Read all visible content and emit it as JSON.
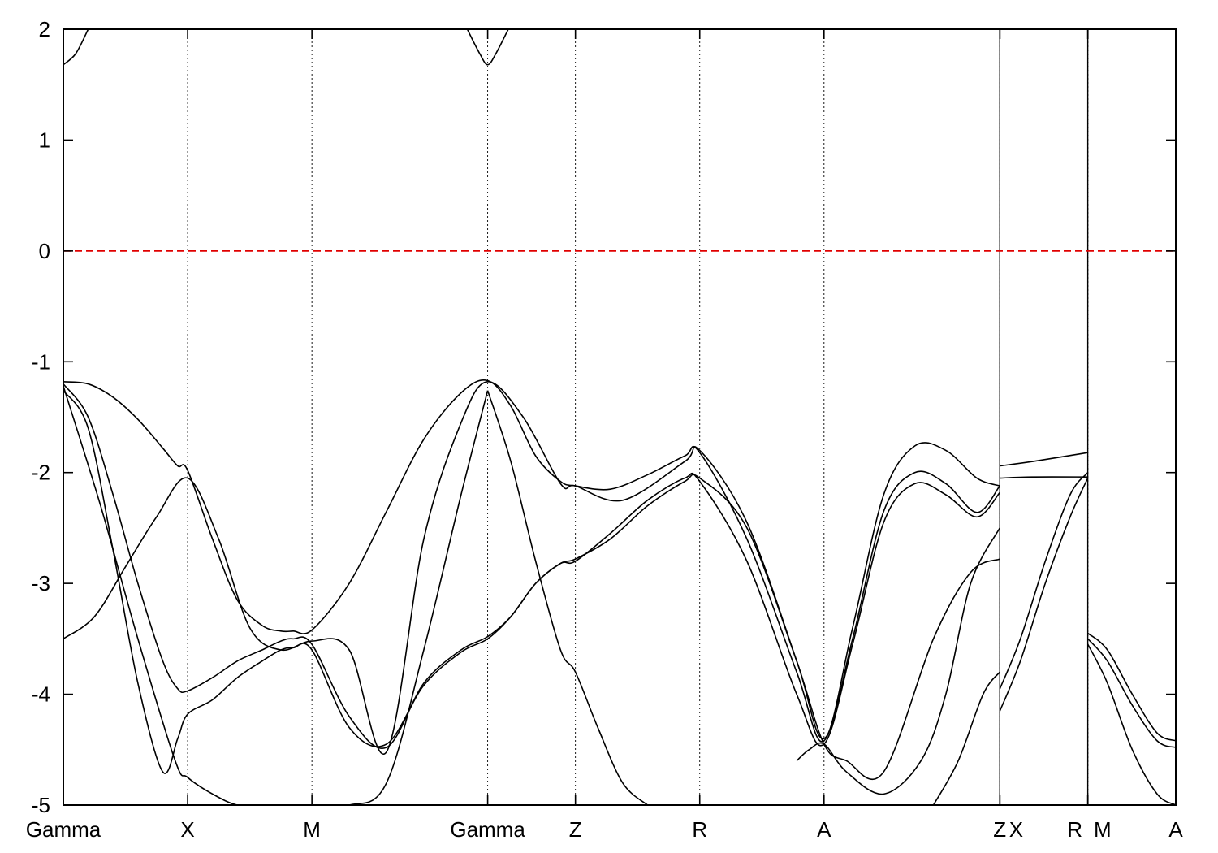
{
  "chart_data": {
    "type": "line",
    "title": "",
    "xlabel": "",
    "ylabel": "",
    "ylim": [
      -5,
      2
    ],
    "yticks": [
      -5,
      -4,
      -3,
      -2,
      -1,
      0,
      1,
      2
    ],
    "kpoints": [
      {
        "label": "Gamma",
        "x": 0
      },
      {
        "label": "X",
        "x": 1
      },
      {
        "label": "M",
        "x": 2
      },
      {
        "label": "Gamma",
        "x": 3.414
      },
      {
        "label": "Z",
        "x": 4.12
      },
      {
        "label": "R",
        "x": 5.12
      },
      {
        "label": "A",
        "x": 6.12
      },
      {
        "label": "Z",
        "x": 7.534
      },
      {
        "label": "X",
        "x": 7.535
      },
      {
        "label": "R",
        "x": 8.242
      },
      {
        "label": "M",
        "x": 8.243
      },
      {
        "label": "A",
        "x": 8.95
      }
    ],
    "xlim": [
      0,
      8.95
    ],
    "fermi_level": 0,
    "colors": {
      "bands": "#000000",
      "fermi": "#e00000",
      "kpath": "#000000"
    },
    "series": [
      {
        "x": [
          0,
          0.2,
          0.4,
          0.6,
          0.8,
          0.92,
          1.0,
          1.2,
          1.4,
          1.6,
          1.75,
          1.85,
          2.0,
          2.3,
          2.6,
          2.9,
          3.2,
          3.414,
          3.6,
          3.8,
          4.0,
          4.12,
          4.4,
          4.7,
          5.0,
          5.12,
          5.5,
          5.9,
          6.12,
          6.35,
          6.6,
          6.85,
          7.1,
          7.35,
          7.534
        ],
        "values": [
          -1.18,
          -1.2,
          -1.32,
          -1.52,
          -1.78,
          -1.94,
          -1.98,
          -2.6,
          -3.15,
          -3.38,
          -3.43,
          -3.43,
          -3.42,
          -3.0,
          -2.35,
          -1.7,
          -1.28,
          -1.17,
          -1.4,
          -1.85,
          -2.08,
          -2.12,
          -2.15,
          -2.02,
          -1.85,
          -1.82,
          -2.6,
          -3.8,
          -4.42,
          -3.4,
          -2.2,
          -1.76,
          -1.8,
          -2.05,
          -2.12
        ]
      },
      {
        "x": [
          0,
          0.2,
          0.4,
          0.6,
          0.8,
          0.92,
          1.0,
          1.2,
          1.4,
          1.6,
          1.75,
          1.85,
          2.0,
          2.3,
          2.6,
          2.9,
          3.2,
          3.414,
          3.6,
          3.8,
          4.0,
          4.12,
          4.4,
          4.7,
          5.0,
          5.12,
          5.5,
          5.9,
          6.12,
          6.35,
          6.6,
          6.85,
          7.1,
          7.35,
          7.534
        ],
        "values": [
          -1.2,
          -1.5,
          -2.2,
          -3.0,
          -3.7,
          -3.95,
          -3.97,
          -3.85,
          -3.7,
          -3.6,
          -3.52,
          -3.5,
          -3.55,
          -4.2,
          -4.48,
          -3.9,
          -3.6,
          -3.48,
          -3.3,
          -3.0,
          -2.82,
          -2.78,
          -2.6,
          -2.3,
          -2.08,
          -2.05,
          -2.5,
          -3.7,
          -4.4,
          -3.5,
          -2.35,
          -2.0,
          -2.1,
          -2.36,
          -2.12
        ]
      },
      {
        "x": [
          0,
          0.2,
          0.4,
          0.6,
          0.8,
          0.92,
          1.0,
          1.2,
          1.4,
          1.6,
          1.75,
          1.85,
          2.0,
          2.3,
          2.6,
          2.9,
          3.2,
          3.414,
          3.6,
          3.8,
          4.0,
          4.12,
          4.4,
          4.7,
          5.0,
          5.12,
          5.5,
          5.9,
          6.12,
          6.35,
          6.6,
          6.85,
          7.1,
          7.35,
          7.534
        ],
        "values": [
          -1.26,
          -1.6,
          -2.7,
          -3.9,
          -4.7,
          -4.4,
          -4.18,
          -4.05,
          -3.85,
          -3.7,
          -3.6,
          -3.58,
          -3.6,
          -4.3,
          -4.45,
          -3.92,
          -3.62,
          -3.5,
          -3.3,
          -3.0,
          -2.82,
          -2.8,
          -2.55,
          -2.25,
          -2.05,
          -2.08,
          -2.8,
          -4.0,
          -4.45,
          -3.55,
          -2.45,
          -2.1,
          -2.2,
          -2.4,
          -2.18
        ]
      },
      {
        "x": [
          0,
          0.25,
          0.5,
          0.75,
          1.0,
          1.25,
          1.5,
          1.75,
          2.0,
          2.3,
          2.6,
          2.9,
          3.2,
          3.414,
          3.7,
          4.0,
          4.12,
          4.5,
          5.0,
          5.12,
          5.5,
          5.9,
          6.12,
          6.3,
          6.6,
          7.0,
          7.3,
          7.534
        ],
        "values": [
          -3.5,
          -3.3,
          -2.85,
          -2.4,
          -2.05,
          -2.6,
          -3.4,
          -3.6,
          -3.52,
          -3.6,
          -4.52,
          -2.6,
          -1.55,
          -1.18,
          -1.5,
          -2.1,
          -2.12,
          -2.25,
          -1.9,
          -1.8,
          -2.45,
          -3.7,
          -4.45,
          -4.6,
          -4.7,
          -3.5,
          -2.9,
          -2.78
        ]
      },
      {
        "x": [
          0,
          0.3,
          0.6,
          0.9,
          1.0,
          1.2,
          1.4,
          1.6,
          1.8,
          2.0,
          2.3,
          2.6,
          2.9,
          3.2,
          3.414
        ],
        "values": [
          -1.22,
          -2.3,
          -3.5,
          -4.6,
          -4.75,
          -4.9,
          -5.0,
          -5.0,
          -5.0,
          -5.0,
          -5.0,
          -4.8,
          -3.6,
          -2.2,
          -1.26
        ]
      },
      {
        "x": [
          3.414,
          3.6,
          3.8,
          4.0,
          4.12,
          4.3,
          4.5,
          4.7
        ],
        "values": [
          -1.26,
          -1.9,
          -2.8,
          -3.6,
          -3.8,
          -4.3,
          -4.8,
          -5.0
        ]
      },
      {
        "x": [
          5.9,
          6.0,
          6.12,
          6.3,
          6.6,
          6.9,
          7.1,
          7.3,
          7.534
        ],
        "values": [
          -4.6,
          -4.5,
          -4.45,
          -4.7,
          -4.9,
          -4.6,
          -4.0,
          -3.0,
          -2.5
        ]
      },
      {
        "x": [
          7.0,
          7.2,
          7.4,
          7.534
        ],
        "values": [
          -5.0,
          -4.6,
          -4.0,
          -3.8
        ]
      },
      {
        "x": [
          0,
          0.1,
          0.2
        ],
        "values": [
          1.68,
          1.78,
          2.0
        ]
      },
      {
        "x": [
          3.25,
          3.35,
          3.414,
          3.48,
          3.58
        ],
        "values": [
          2.0,
          1.78,
          1.68,
          1.78,
          2.0
        ]
      },
      {
        "x": [
          7.535,
          7.7,
          7.9,
          8.1,
          8.242
        ],
        "values": [
          -3.95,
          -3.5,
          -2.8,
          -2.2,
          -2.0
        ]
      },
      {
        "x": [
          7.535,
          7.7,
          7.9,
          8.1,
          8.242
        ],
        "values": [
          -4.15,
          -3.7,
          -3.0,
          -2.4,
          -2.05
        ]
      },
      {
        "x": [
          7.535,
          7.8,
          8.242
        ],
        "values": [
          -1.94,
          -1.9,
          -1.82
        ]
      },
      {
        "x": [
          7.535,
          7.8,
          8.242
        ],
        "values": [
          -2.05,
          -2.04,
          -2.04
        ]
      },
      {
        "x": [
          8.243,
          8.4,
          8.6,
          8.8,
          8.95
        ],
        "values": [
          -3.45,
          -3.6,
          -4.0,
          -4.35,
          -4.42
        ]
      },
      {
        "x": [
          8.243,
          8.4,
          8.6,
          8.8,
          8.95
        ],
        "values": [
          -3.5,
          -3.7,
          -4.1,
          -4.42,
          -4.48
        ]
      },
      {
        "x": [
          8.243,
          8.4,
          8.6,
          8.8,
          8.95
        ],
        "values": [
          -3.55,
          -3.9,
          -4.5,
          -4.9,
          -5.0
        ]
      }
    ]
  }
}
